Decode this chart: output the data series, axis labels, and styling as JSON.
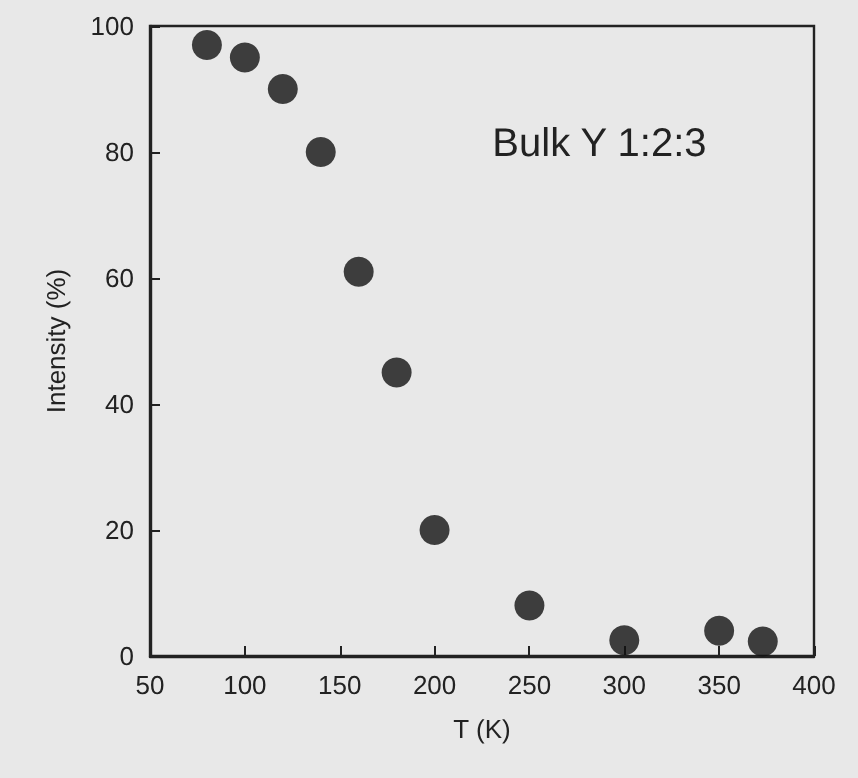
{
  "chart_data": {
    "type": "scatter",
    "xlabel": "T (K)",
    "ylabel": "Intensity (%)",
    "annotations": [
      "Bulk Y 1:2:3"
    ],
    "x": [
      80,
      100,
      120,
      140,
      160,
      180,
      200,
      250,
      300,
      350,
      373
    ],
    "values": [
      97,
      95,
      90,
      80,
      61,
      45,
      20,
      8,
      2.5,
      4,
      2.3
    ],
    "color": "#111111",
    "marker": "circle",
    "xlim": [
      50,
      400
    ],
    "xticks": [
      50,
      100,
      150,
      200,
      250,
      300,
      350,
      400
    ],
    "ylim": [
      0,
      100
    ],
    "yticks": [
      0,
      20,
      40,
      60,
      80,
      100
    ],
    "grid": false
  }
}
